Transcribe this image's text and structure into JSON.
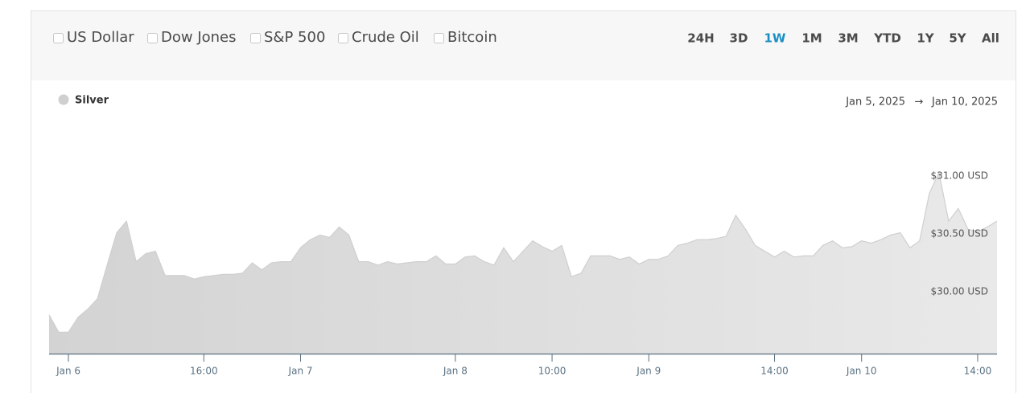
{
  "controls": {
    "compare": [
      "US Dollar",
      "Dow Jones",
      "S&P 500",
      "Crude Oil",
      "Bitcoin"
    ],
    "ranges": [
      "24H",
      "3D",
      "1W",
      "1M",
      "3M",
      "YTD",
      "1Y",
      "5Y",
      "All"
    ],
    "active_range": "1W",
    "date_range": {
      "start": "Jan 5, 2025",
      "separator": "→",
      "end": "Jan 10, 2025"
    }
  },
  "chart_data": {
    "type": "area",
    "categories": [
      null,
      null,
      "Jan 6",
      null,
      null,
      null,
      null,
      null,
      null,
      null,
      null,
      null,
      null,
      null,
      null,
      null,
      "16:00",
      null,
      null,
      null,
      null,
      null,
      null,
      null,
      null,
      null,
      "Jan 7",
      null,
      null,
      null,
      null,
      null,
      null,
      null,
      null,
      null,
      null,
      null,
      null,
      null,
      null,
      null,
      "Jan 8",
      null,
      null,
      null,
      null,
      null,
      null,
      null,
      null,
      null,
      "10:00",
      null,
      null,
      null,
      null,
      null,
      null,
      null,
      null,
      null,
      "Jan 9",
      null,
      null,
      null,
      null,
      null,
      null,
      null,
      null,
      null,
      null,
      null,
      null,
      "14:00",
      null,
      null,
      null,
      null,
      null,
      null,
      null,
      null,
      "Jan 10",
      null,
      null,
      null,
      null,
      null,
      null,
      null,
      null,
      null,
      null,
      null,
      "14:00",
      null,
      null
    ],
    "series": [
      {
        "name": "Silver",
        "color": "#cfcfcf",
        "values": [
          29.8,
          29.65,
          29.65,
          29.78,
          29.85,
          29.94,
          30.23,
          30.51,
          30.61,
          30.26,
          30.33,
          30.35,
          30.14,
          30.14,
          30.14,
          30.11,
          30.13,
          30.14,
          30.15,
          30.15,
          30.16,
          30.25,
          30.19,
          30.25,
          30.26,
          30.26,
          30.38,
          30.45,
          30.49,
          30.47,
          30.56,
          30.49,
          30.26,
          30.26,
          30.23,
          30.26,
          30.24,
          30.25,
          30.26,
          30.26,
          30.31,
          30.24,
          30.24,
          30.3,
          30.31,
          30.26,
          30.23,
          30.38,
          30.26,
          30.35,
          30.44,
          30.39,
          30.35,
          30.4,
          30.13,
          30.16,
          30.31,
          30.31,
          30.31,
          30.28,
          30.3,
          30.24,
          30.28,
          30.28,
          30.31,
          30.4,
          30.42,
          30.45,
          30.45,
          30.46,
          30.48,
          30.66,
          30.54,
          30.4,
          30.35,
          30.3,
          30.35,
          30.3,
          30.31,
          30.31,
          30.4,
          30.44,
          30.38,
          30.39,
          30.44,
          30.42,
          30.45,
          30.49,
          30.51,
          30.38,
          30.44,
          30.85,
          31.03,
          30.61,
          30.72,
          30.54,
          30.52,
          30.56,
          30.61
        ]
      }
    ],
    "ylim": [
      29.465,
      31.48
    ],
    "yticks": [
      {
        "value": 30,
        "label": "$30.00 USD"
      },
      {
        "value": 30.5,
        "label": "$30.50 USD"
      },
      {
        "value": 31,
        "label": "$31.00 USD"
      }
    ],
    "grid": false
  }
}
